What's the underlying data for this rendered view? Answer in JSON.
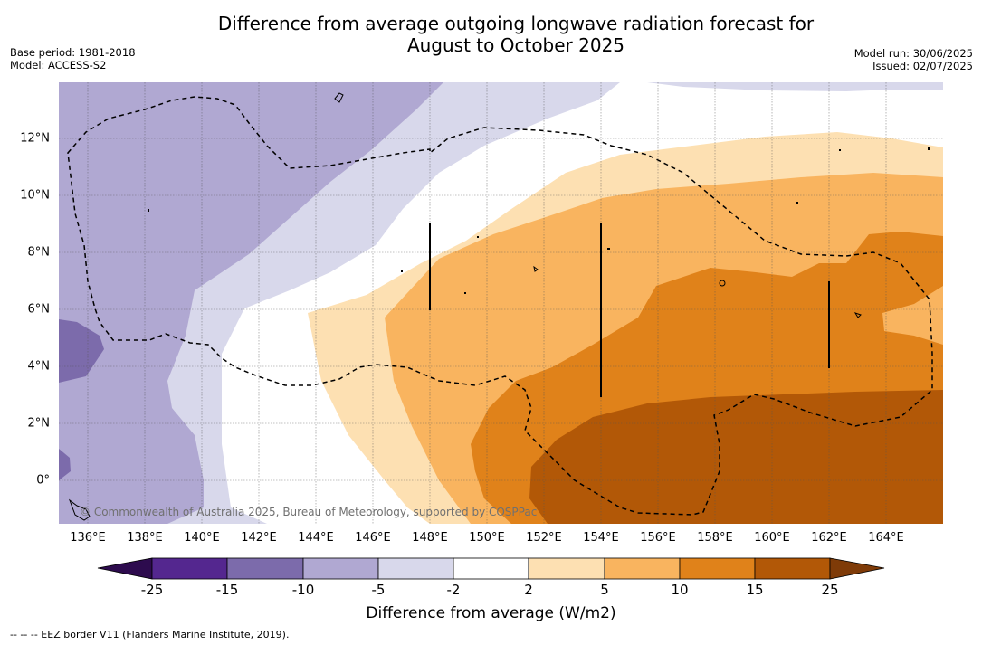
{
  "title": {
    "line1": "Difference from average outgoing longwave radiation forecast for",
    "line2": "August to October 2025"
  },
  "meta_left": {
    "base_period": "Base period: 1981-2018",
    "model": "Model: ACCESS-S2"
  },
  "meta_right": {
    "model_run": "Model run: 30/06/2025",
    "issued": "Issued: 02/07/2025"
  },
  "map": {
    "longitude_labels": [
      "136°E",
      "138°E",
      "140°E",
      "142°E",
      "144°E",
      "146°E",
      "148°E",
      "150°E",
      "152°E",
      "154°E",
      "156°E",
      "158°E",
      "160°E",
      "162°E",
      "164°E"
    ],
    "latitude_labels": [
      "12°N",
      "10°N",
      "8°N",
      "6°N",
      "4°N",
      "2°N",
      "0°"
    ],
    "copyright": "© Commonwealth of Australia 2025, Bureau of Meteorology, supported by COSPPac",
    "eez_border_style": "dashed"
  },
  "colorbar": {
    "ticks": [
      "-25",
      "-15",
      "-10",
      "-5",
      "-2",
      "2",
      "5",
      "10",
      "15",
      "25"
    ],
    "label": "Difference from average (W/m2)",
    "colors": {
      "below_-25": "#2d0b4e",
      "-25_-15": "#54278f",
      "-15_-10": "#7c6bab",
      "-10_-5": "#b0a8d2",
      "-5_-2": "#d8d8eb",
      "-2_2": "#ffffff",
      "2_5": "#fde0b2",
      "5_10": "#f9b45f",
      "10_15": "#e0821a",
      "15_25": "#b25807",
      "above_25": "#7f3b08"
    }
  },
  "footnote": "--  --  -- EEZ border V11 (Flanders Marine Institute, 2019)."
}
